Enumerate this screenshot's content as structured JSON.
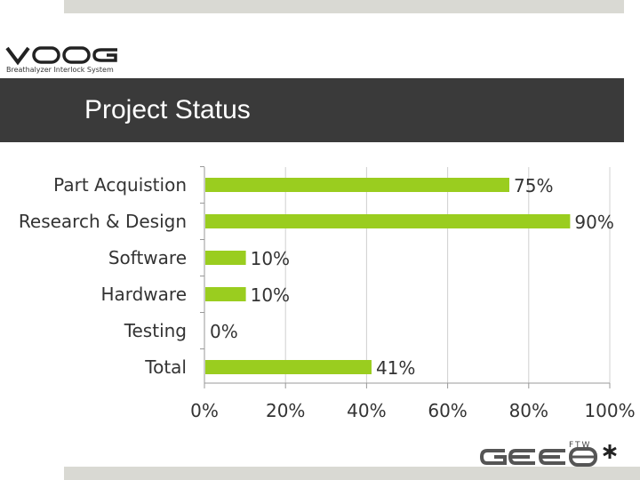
{
  "header": {
    "brand": "VOOG",
    "tagline": "Breathalyzer Interlock System",
    "title": "Project Status"
  },
  "footer": {
    "brand": "GEE8",
    "small": "FTW"
  },
  "colors": {
    "bar": "#9ACD1F",
    "title_bar": "#3a3a3a",
    "strip": "#d9d9d3",
    "grid": "#d0d0d0",
    "text": "#333333"
  },
  "chart_data": {
    "type": "bar",
    "orientation": "horizontal",
    "categories": [
      "Part Acquistion",
      "Research & Design",
      "Software",
      "Hardware",
      "Testing",
      "Total"
    ],
    "values": [
      75,
      90,
      10,
      10,
      0,
      41
    ],
    "data_labels": [
      "75%",
      "90%",
      "10%",
      "10%",
      "0%",
      "41%"
    ],
    "x_ticks": [
      "0%",
      "20%",
      "40%",
      "60%",
      "80%",
      "100%"
    ],
    "xlim": [
      0,
      100
    ],
    "grid": true,
    "title": "",
    "xlabel": "",
    "ylabel": ""
  }
}
